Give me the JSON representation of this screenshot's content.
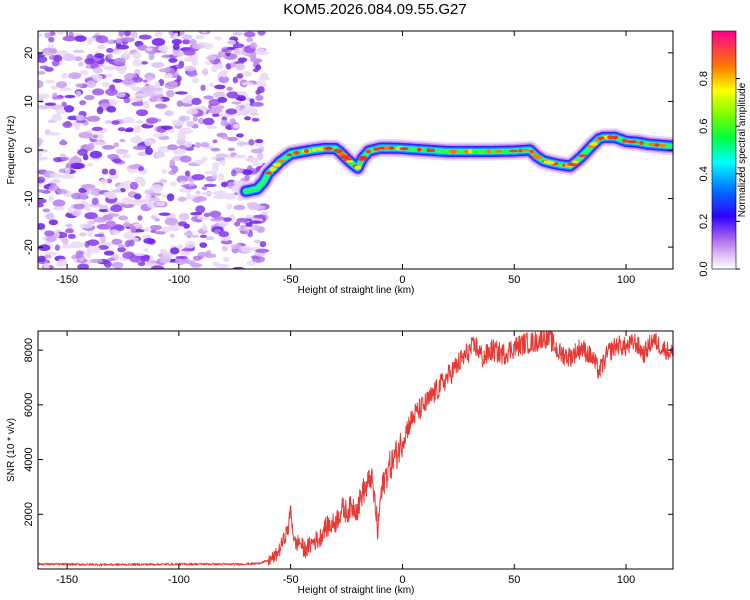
{
  "title": "KOM5.2026.084.09.55.G27",
  "chart_data": [
    {
      "type": "heatmap",
      "name": "spectrogram",
      "xlabel": "Height of straight line (km)",
      "ylabel": "Frequency (Hz)",
      "xlim": [
        -163,
        121
      ],
      "ylim": [
        -24.5,
        24.5
      ],
      "xticks": [
        -150,
        -100,
        -50,
        0,
        50,
        100
      ],
      "yticks": [
        -20,
        -10,
        0,
        10,
        20
      ],
      "noise_region": [
        -163,
        -65
      ],
      "colorbar": {
        "label": "Normalized spectral amplitude",
        "range": [
          0,
          1
        ],
        "ticks": [
          "0.0",
          "0.2",
          "0.4",
          "0.6",
          "0.8"
        ]
      },
      "signal_track": {
        "x": [
          -70,
          -65,
          -62,
          -60,
          -57,
          -55,
          -50,
          -45,
          -40,
          -35,
          -30,
          -28,
          -25,
          -22,
          -20,
          -18,
          -15,
          -10,
          -5,
          0,
          10,
          20,
          30,
          40,
          50,
          57,
          60,
          63,
          66,
          70,
          73,
          75,
          77,
          80,
          85,
          88,
          90,
          95,
          100,
          105,
          110,
          115,
          120
        ],
        "y": [
          -8.5,
          -8,
          -6.5,
          -4.8,
          -3.5,
          -2.5,
          -0.8,
          -0.4,
          0,
          0.3,
          0.3,
          -0.4,
          -1.8,
          -3,
          -3.7,
          -1.8,
          -0.2,
          0.4,
          0.4,
          0.3,
          0,
          -0.3,
          -0.3,
          -0.3,
          -0.2,
          0,
          -1.3,
          -2.2,
          -2.6,
          -3,
          -3.2,
          -3.3,
          -2.6,
          -1.4,
          1,
          2.3,
          2.6,
          2.6,
          1.8,
          1.6,
          1.2,
          1,
          0.8
        ]
      }
    },
    {
      "type": "line",
      "name": "snr",
      "xlabel": "Height of straight line (km)",
      "ylabel": "SNR (10 * v/v)",
      "xlim": [
        -163,
        121
      ],
      "ylim": [
        0,
        8700
      ],
      "xticks": [
        -150,
        -100,
        -50,
        0,
        50,
        100
      ],
      "yticks": [
        2000,
        4000,
        6000,
        8000
      ],
      "color": "#e83a35",
      "series": [
        {
          "name": "SNR",
          "x": [
            -163,
            -150,
            -130,
            -110,
            -90,
            -75,
            -65,
            -60,
            -57,
            -55,
            -53,
            -51,
            -50,
            -49,
            -48,
            -46,
            -44,
            -42,
            -40,
            -37,
            -35,
            -32,
            -30,
            -27,
            -25,
            -22,
            -20,
            -18,
            -16,
            -14,
            -12,
            -11,
            -10,
            -8,
            -6,
            -4,
            -2,
            0,
            3,
            6,
            10,
            15,
            20,
            25,
            30,
            33,
            36,
            40,
            45,
            50,
            55,
            60,
            63,
            66,
            70,
            75,
            80,
            85,
            88,
            92,
            96,
            100,
            104,
            108,
            112,
            116,
            120
          ],
          "y": [
            180,
            170,
            160,
            170,
            180,
            170,
            200,
            300,
            450,
            700,
            1100,
            1500,
            2200,
            1400,
            900,
            1000,
            700,
            800,
            1000,
            1100,
            1500,
            1600,
            1700,
            2200,
            2100,
            2300,
            2200,
            2800,
            3000,
            3400,
            2200,
            1300,
            2500,
            3300,
            3700,
            4000,
            4300,
            4700,
            5300,
            5700,
            6000,
            6500,
            7000,
            7500,
            8000,
            8150,
            7700,
            8000,
            7850,
            8100,
            8250,
            8300,
            8500,
            8400,
            7900,
            7750,
            8100,
            7700,
            7200,
            7900,
            8200,
            8100,
            8300,
            7850,
            8400,
            8100,
            7900
          ]
        }
      ]
    }
  ]
}
